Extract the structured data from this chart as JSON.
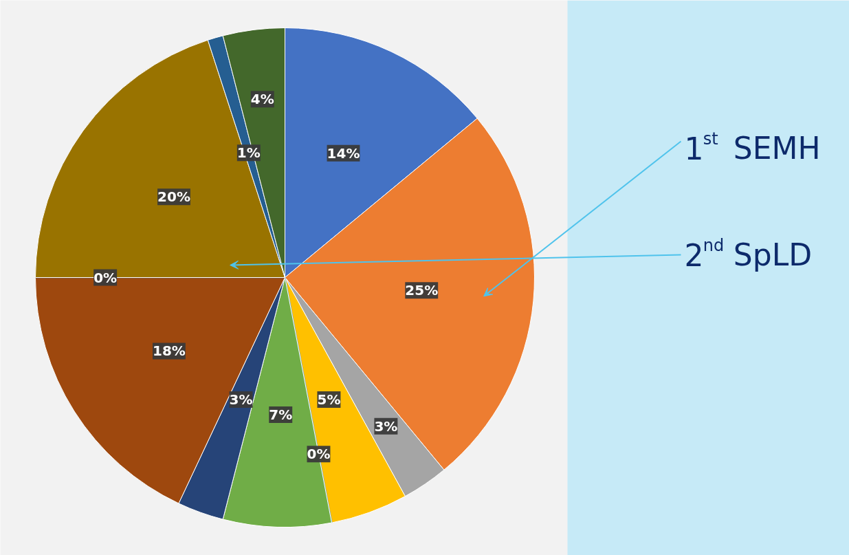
{
  "chart_data": {
    "type": "pie",
    "categories": [
      null,
      null,
      null,
      null,
      null,
      null,
      null,
      null,
      null,
      null,
      null,
      null
    ],
    "values": [
      14,
      25,
      3,
      5,
      0,
      7,
      3,
      18,
      0,
      20,
      1,
      4
    ],
    "colors": [
      "#4472c4",
      "#ed7d31",
      "#a5a5a5",
      "#ffc000",
      "#5b9bd5",
      "#70ad47",
      "#264478",
      "#9e480e",
      "#636363",
      "#997300",
      "#255e91",
      "#43682b"
    ],
    "value_labels": [
      "14%",
      "25%",
      "3%",
      "5%",
      "0%",
      "7%",
      "3%",
      "18%",
      "0%",
      "20%",
      "1%",
      "4%"
    ],
    "annotations": [
      "1$^{st}$ SEMH",
      "2$^{nd}$ SpLD"
    ]
  }
}
